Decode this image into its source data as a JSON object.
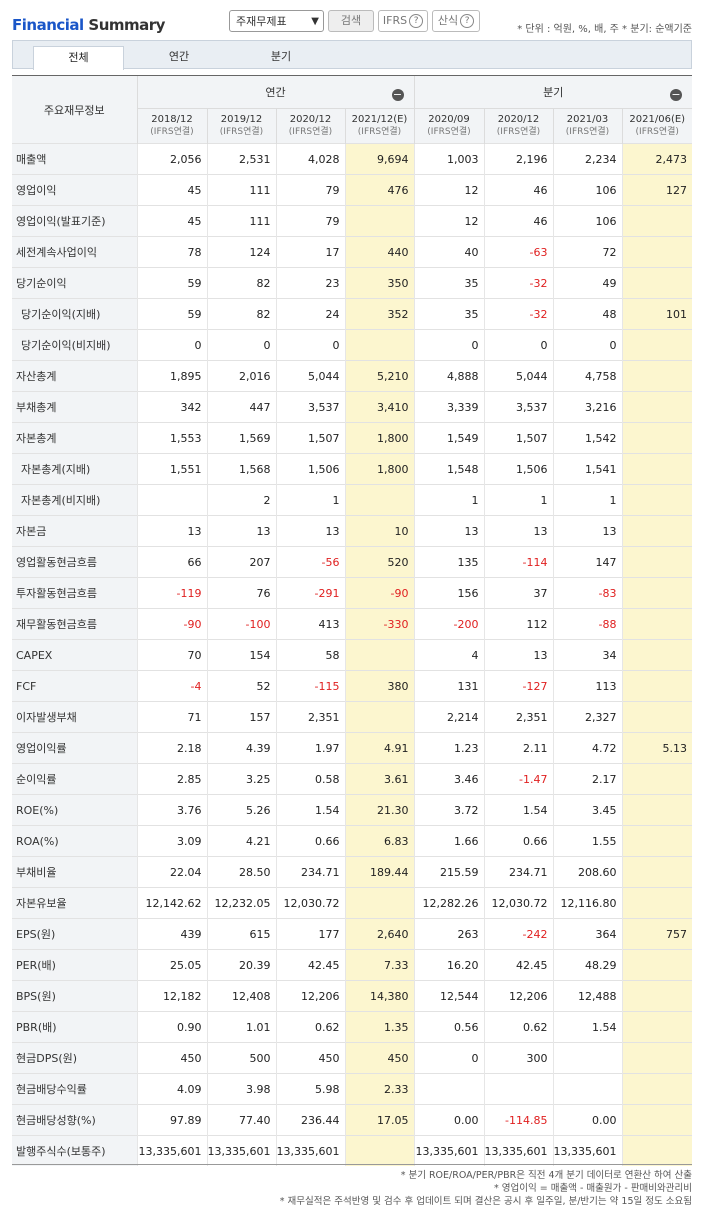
{
  "brand": {
    "part1": "Financial",
    "part2": " Summary"
  },
  "toolbar": {
    "select_value": "주재무제표",
    "search_label": "검색",
    "ifrs_label": "IFRS",
    "calc_label": "산식",
    "help_glyph": "?"
  },
  "unit_note": "* 단위 : 억원, %, 배, 주    * 분기: 순액기준",
  "tabs": [
    "전체",
    "연간",
    "분기"
  ],
  "header": {
    "row_label": "주요재무정보",
    "group_annual": "연간",
    "group_quarter": "분기",
    "periods": [
      {
        "p": "2018/12",
        "s": "(IFRS연결)"
      },
      {
        "p": "2019/12",
        "s": "(IFRS연결)"
      },
      {
        "p": "2020/12",
        "s": "(IFRS연결)"
      },
      {
        "p": "2021/12(E)",
        "s": "(IFRS연결)"
      },
      {
        "p": "2020/09",
        "s": "(IFRS연결)"
      },
      {
        "p": "2020/12",
        "s": "(IFRS연결)"
      },
      {
        "p": "2021/03",
        "s": "(IFRS연결)"
      },
      {
        "p": "2021/06(E)",
        "s": "(IFRS연결)"
      }
    ]
  },
  "rows": [
    {
      "label": "매출액",
      "sub": false,
      "v": [
        "2,056",
        "2,531",
        "4,028",
        "9,694",
        "1,003",
        "2,196",
        "2,234",
        "2,473"
      ]
    },
    {
      "label": "영업이익",
      "sub": false,
      "v": [
        "45",
        "111",
        "79",
        "476",
        "12",
        "46",
        "106",
        "127"
      ]
    },
    {
      "label": "영업이익(발표기준)",
      "sub": false,
      "v": [
        "45",
        "111",
        "79",
        "",
        "12",
        "46",
        "106",
        ""
      ]
    },
    {
      "label": "세전계속사업이익",
      "sub": false,
      "v": [
        "78",
        "124",
        "17",
        "440",
        "40",
        "-63",
        "72",
        ""
      ]
    },
    {
      "label": "당기순이익",
      "sub": false,
      "v": [
        "59",
        "82",
        "23",
        "350",
        "35",
        "-32",
        "49",
        ""
      ]
    },
    {
      "label": "당기순이익(지배)",
      "sub": true,
      "v": [
        "59",
        "82",
        "24",
        "352",
        "35",
        "-32",
        "48",
        "101"
      ]
    },
    {
      "label": "당기순이익(비지배)",
      "sub": true,
      "v": [
        "0",
        "0",
        "0",
        "",
        "0",
        "0",
        "0",
        ""
      ]
    },
    {
      "label": "자산총계",
      "sub": false,
      "v": [
        "1,895",
        "2,016",
        "5,044",
        "5,210",
        "4,888",
        "5,044",
        "4,758",
        ""
      ]
    },
    {
      "label": "부채총계",
      "sub": false,
      "v": [
        "342",
        "447",
        "3,537",
        "3,410",
        "3,339",
        "3,537",
        "3,216",
        ""
      ]
    },
    {
      "label": "자본총계",
      "sub": false,
      "v": [
        "1,553",
        "1,569",
        "1,507",
        "1,800",
        "1,549",
        "1,507",
        "1,542",
        ""
      ]
    },
    {
      "label": "자본총계(지배)",
      "sub": true,
      "v": [
        "1,551",
        "1,568",
        "1,506",
        "1,800",
        "1,548",
        "1,506",
        "1,541",
        ""
      ]
    },
    {
      "label": "자본총계(비지배)",
      "sub": true,
      "v": [
        "",
        "2",
        "1",
        "",
        "1",
        "1",
        "1",
        ""
      ]
    },
    {
      "label": "자본금",
      "sub": false,
      "v": [
        "13",
        "13",
        "13",
        "10",
        "13",
        "13",
        "13",
        ""
      ]
    },
    {
      "label": "영업활동현금흐름",
      "sub": false,
      "v": [
        "66",
        "207",
        "-56",
        "520",
        "135",
        "-114",
        "147",
        ""
      ]
    },
    {
      "label": "투자활동현금흐름",
      "sub": false,
      "v": [
        "-119",
        "76",
        "-291",
        "-90",
        "156",
        "37",
        "-83",
        ""
      ]
    },
    {
      "label": "재무활동현금흐름",
      "sub": false,
      "v": [
        "-90",
        "-100",
        "413",
        "-330",
        "-200",
        "112",
        "-88",
        ""
      ]
    },
    {
      "label": "CAPEX",
      "sub": false,
      "v": [
        "70",
        "154",
        "58",
        "",
        "4",
        "13",
        "34",
        ""
      ]
    },
    {
      "label": "FCF",
      "sub": false,
      "v": [
        "-4",
        "52",
        "-115",
        "380",
        "131",
        "-127",
        "113",
        ""
      ]
    },
    {
      "label": "이자발생부채",
      "sub": false,
      "v": [
        "71",
        "157",
        "2,351",
        "",
        "2,214",
        "2,351",
        "2,327",
        ""
      ]
    },
    {
      "label": "영업이익률",
      "sub": false,
      "v": [
        "2.18",
        "4.39",
        "1.97",
        "4.91",
        "1.23",
        "2.11",
        "4.72",
        "5.13"
      ]
    },
    {
      "label": "순이익률",
      "sub": false,
      "v": [
        "2.85",
        "3.25",
        "0.58",
        "3.61",
        "3.46",
        "-1.47",
        "2.17",
        ""
      ]
    },
    {
      "label": "ROE(%)",
      "sub": false,
      "v": [
        "3.76",
        "5.26",
        "1.54",
        "21.30",
        "3.72",
        "1.54",
        "3.45",
        ""
      ]
    },
    {
      "label": "ROA(%)",
      "sub": false,
      "v": [
        "3.09",
        "4.21",
        "0.66",
        "6.83",
        "1.66",
        "0.66",
        "1.55",
        ""
      ]
    },
    {
      "label": "부채비율",
      "sub": false,
      "v": [
        "22.04",
        "28.50",
        "234.71",
        "189.44",
        "215.59",
        "234.71",
        "208.60",
        ""
      ]
    },
    {
      "label": "자본유보율",
      "sub": false,
      "v": [
        "12,142.62",
        "12,232.05",
        "12,030.72",
        "",
        "12,282.26",
        "12,030.72",
        "12,116.80",
        ""
      ]
    },
    {
      "label": "EPS(원)",
      "sub": false,
      "v": [
        "439",
        "615",
        "177",
        "2,640",
        "263",
        "-242",
        "364",
        "757"
      ]
    },
    {
      "label": "PER(배)",
      "sub": false,
      "v": [
        "25.05",
        "20.39",
        "42.45",
        "7.33",
        "16.20",
        "42.45",
        "48.29",
        ""
      ]
    },
    {
      "label": "BPS(원)",
      "sub": false,
      "v": [
        "12,182",
        "12,408",
        "12,206",
        "14,380",
        "12,544",
        "12,206",
        "12,488",
        ""
      ]
    },
    {
      "label": "PBR(배)",
      "sub": false,
      "v": [
        "0.90",
        "1.01",
        "0.62",
        "1.35",
        "0.56",
        "0.62",
        "1.54",
        ""
      ]
    },
    {
      "label": "현금DPS(원)",
      "sub": false,
      "v": [
        "450",
        "500",
        "450",
        "450",
        "0",
        "300",
        "",
        ""
      ]
    },
    {
      "label": "현금배당수익률",
      "sub": false,
      "v": [
        "4.09",
        "3.98",
        "5.98",
        "2.33",
        "",
        "",
        "",
        ""
      ]
    },
    {
      "label": "현금배당성향(%)",
      "sub": false,
      "v": [
        "97.89",
        "77.40",
        "236.44",
        "17.05",
        "0.00",
        "-114.85",
        "0.00",
        ""
      ]
    },
    {
      "label": "발행주식수(보통주)",
      "sub": false,
      "v": [
        "13,335,601",
        "13,335,601",
        "13,335,601",
        "",
        "13,335,601",
        "13,335,601",
        "13,335,601",
        ""
      ]
    }
  ],
  "footnotes": [
    "* 분기 ROE/ROA/PER/PBR은 직전 4개 분기 데이터로 연환산 하여 산출",
    "* 영업이익 = 매출액 - 매출원가 - 판매비와관리비",
    "* 재무실적은 주석반영 및 검수 후 업데이트 되며 결산은 공시 후 일주일, 분/반기는 약 15일 정도 소요됨"
  ]
}
